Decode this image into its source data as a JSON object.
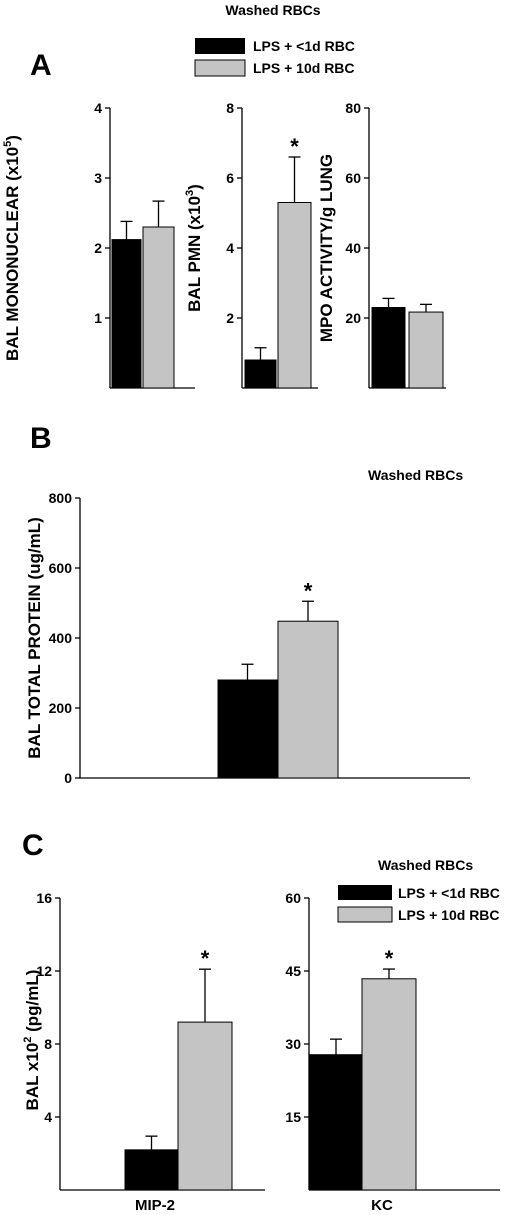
{
  "figure": {
    "panel_a": {
      "letter": "A",
      "title": "Washed RBCs",
      "legend": [
        "LPS + <1d RBC",
        "LPS + 10d RBC"
      ]
    },
    "panel_b": {
      "letter": "B",
      "title": "Washed RBCs"
    },
    "panel_c": {
      "letter": "C",
      "title": "Washed RBCs",
      "legend": [
        "LPS + <1d RBC",
        "LPS + 10d RBC"
      ]
    },
    "colors": {
      "lps_lt1d": "#000000",
      "lps_10d": "#c4c4c4"
    }
  },
  "chart_data": [
    {
      "panel": "A",
      "type": "bar",
      "ylabel": "BAL MONONUCLEAR (x10^5)",
      "ylim": [
        0,
        4
      ],
      "yticks": [
        1,
        2,
        3,
        4
      ],
      "series": [
        {
          "name": "LPS + <1d RBC",
          "values": [
            2.12
          ],
          "errors": [
            0.26
          ],
          "color": "#000000"
        },
        {
          "name": "LPS + 10d RBC",
          "values": [
            2.3
          ],
          "errors": [
            0.37
          ],
          "color": "#c4c4c4"
        }
      ]
    },
    {
      "panel": "A",
      "type": "bar",
      "ylabel": "BAL PMN (x10^3)",
      "ylim": [
        0,
        8
      ],
      "yticks": [
        2,
        4,
        6,
        8
      ],
      "series": [
        {
          "name": "LPS + <1d RBC",
          "values": [
            0.8
          ],
          "errors": [
            0.35
          ],
          "color": "#000000"
        },
        {
          "name": "LPS + 10d RBC",
          "values": [
            5.3
          ],
          "errors": [
            1.3
          ],
          "color": "#c4c4c4",
          "annotation": "*"
        }
      ]
    },
    {
      "panel": "A",
      "type": "bar",
      "ylabel": "MPO ACTIVITY/g LUNG",
      "ylim": [
        0,
        80
      ],
      "yticks": [
        20,
        40,
        60,
        80
      ],
      "series": [
        {
          "name": "LPS + <1d RBC",
          "values": [
            23
          ],
          "errors": [
            2.6
          ],
          "color": "#000000"
        },
        {
          "name": "LPS + 10d RBC",
          "values": [
            21.7
          ],
          "errors": [
            2.2
          ],
          "color": "#c4c4c4"
        }
      ]
    },
    {
      "panel": "B",
      "type": "bar",
      "ylabel": "BAL TOTAL PROTEIN (ug/mL)",
      "ylim": [
        0,
        800
      ],
      "yticks": [
        0,
        200,
        400,
        600,
        800
      ],
      "series": [
        {
          "name": "LPS + <1d RBC",
          "values": [
            280
          ],
          "errors": [
            45
          ],
          "color": "#000000"
        },
        {
          "name": "LPS + 10d RBC",
          "values": [
            448
          ],
          "errors": [
            57
          ],
          "color": "#c4c4c4",
          "annotation": "*"
        }
      ]
    },
    {
      "panel": "C",
      "type": "bar",
      "ylabel": "BAL x10^2 (pg/mL)",
      "categories": [
        "MIP-2"
      ],
      "ylim": [
        0,
        16
      ],
      "yticks": [
        4,
        8,
        12,
        16
      ],
      "series": [
        {
          "name": "LPS + <1d RBC",
          "values": [
            2.2
          ],
          "errors": [
            0.75
          ],
          "color": "#000000"
        },
        {
          "name": "LPS + 10d RBC",
          "values": [
            9.2
          ],
          "errors": [
            2.9
          ],
          "color": "#c4c4c4",
          "annotation": "*"
        }
      ]
    },
    {
      "panel": "C",
      "type": "bar",
      "categories": [
        "KC"
      ],
      "ylim": [
        0,
        60
      ],
      "yticks": [
        15,
        30,
        45,
        60
      ],
      "series": [
        {
          "name": "LPS + <1d RBC",
          "values": [
            27.8
          ],
          "errors": [
            3.2
          ],
          "color": "#000000"
        },
        {
          "name": "LPS + 10d RBC",
          "values": [
            43.4
          ],
          "errors": [
            2
          ],
          "color": "#c4c4c4",
          "annotation": "*"
        }
      ]
    }
  ]
}
